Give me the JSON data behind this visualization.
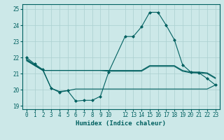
{
  "background_color": "#cce8e8",
  "grid_color": "#aacfcf",
  "line_color": "#006060",
  "xlabel": "Humidex (Indice chaleur)",
  "xlim": [
    -0.5,
    23.5
  ],
  "ylim": [
    18.8,
    25.3
  ],
  "yticks": [
    19,
    20,
    21,
    22,
    23,
    24,
    25
  ],
  "xticks": [
    0,
    1,
    2,
    3,
    4,
    5,
    6,
    7,
    8,
    9,
    10,
    12,
    13,
    14,
    15,
    16,
    17,
    18,
    19,
    20,
    21,
    22,
    23
  ],
  "line1_x": [
    0,
    1,
    2,
    3,
    4,
    5,
    6,
    7,
    8,
    9,
    10,
    12,
    13,
    14,
    15,
    16,
    17,
    18,
    19,
    20,
    21,
    22,
    23
  ],
  "line1_y": [
    22.0,
    21.6,
    21.25,
    20.1,
    19.85,
    19.95,
    19.3,
    19.35,
    19.35,
    19.6,
    21.1,
    23.3,
    23.3,
    23.9,
    24.8,
    24.8,
    24.0,
    23.1,
    21.55,
    21.1,
    21.05,
    20.7,
    20.3
  ],
  "line2_x": [
    0,
    1,
    2,
    3,
    4,
    5,
    6,
    7,
    8,
    9,
    10,
    12,
    13,
    14,
    15,
    16,
    17,
    18,
    19,
    20,
    21,
    22,
    23
  ],
  "line2_y": [
    21.9,
    21.55,
    21.2,
    21.2,
    21.2,
    21.2,
    21.2,
    21.2,
    21.2,
    21.2,
    21.2,
    21.2,
    21.2,
    21.2,
    21.5,
    21.5,
    21.5,
    21.5,
    21.2,
    21.1,
    21.1,
    21.05,
    20.75
  ],
  "line3_x": [
    0,
    1,
    2,
    3,
    4,
    5,
    6,
    7,
    8,
    9,
    10,
    12,
    13,
    14,
    15,
    16,
    17,
    18,
    19,
    20,
    21,
    22,
    23
  ],
  "line3_y": [
    21.85,
    21.5,
    21.2,
    21.2,
    21.2,
    21.2,
    21.2,
    21.2,
    21.2,
    21.2,
    21.15,
    21.15,
    21.15,
    21.15,
    21.45,
    21.45,
    21.45,
    21.45,
    21.15,
    21.05,
    21.05,
    21.0,
    20.7
  ],
  "line4_x": [
    0,
    1,
    2,
    3,
    4,
    5,
    6,
    7,
    8,
    9,
    10,
    12,
    13,
    14,
    15,
    16,
    17,
    18,
    19,
    20,
    21,
    22,
    23
  ],
  "line4_y": [
    21.8,
    21.5,
    21.2,
    20.1,
    19.9,
    19.95,
    20.05,
    20.05,
    20.05,
    20.05,
    20.05,
    20.05,
    20.05,
    20.05,
    20.05,
    20.05,
    20.05,
    20.05,
    20.05,
    20.05,
    20.05,
    20.05,
    20.3
  ],
  "tick_fontsize": 5.5,
  "label_fontsize": 6.5
}
